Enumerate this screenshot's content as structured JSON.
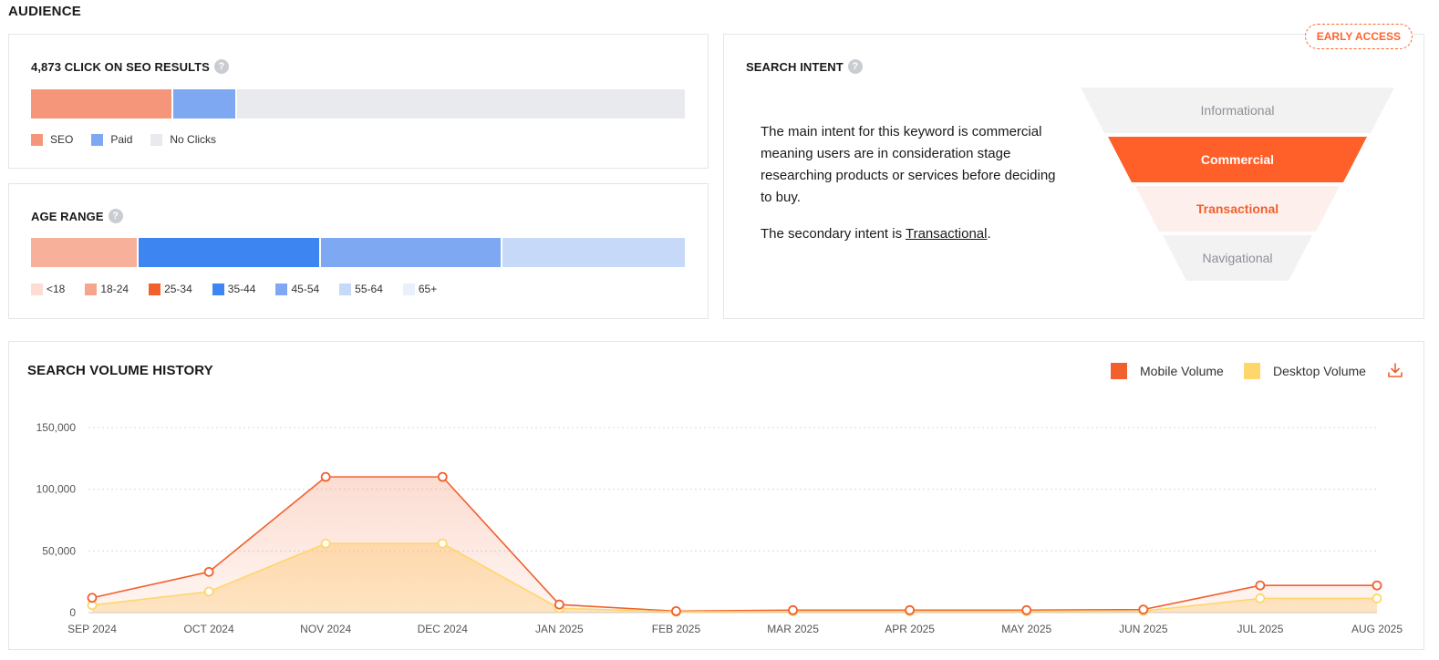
{
  "section_title": "AUDIENCE",
  "clicks": {
    "title": "4,873 CLICK ON SEO RESULTS",
    "help": "?",
    "segments": [
      {
        "key": "seo",
        "label": "SEO",
        "share": 0.218,
        "color": "#f5967a"
      },
      {
        "key": "paid",
        "label": "Paid",
        "share": 0.097,
        "color": "#7fa8f3"
      },
      {
        "key": "noclicks",
        "label": "No Clicks",
        "share": 0.685,
        "color": "#e8eaed"
      }
    ]
  },
  "age": {
    "title": "AGE RANGE",
    "help": "?",
    "bar": [
      {
        "range": "18-24",
        "share": 0.165,
        "color": "#f7b19b"
      },
      {
        "range": "35-44",
        "share": 0.278,
        "color": "#3d86f2"
      },
      {
        "range": "45-54",
        "share": 0.278,
        "color": "#7fa8f3"
      },
      {
        "range": "55-64",
        "share": 0.279,
        "color": "#c6d9f9"
      }
    ],
    "legend": [
      {
        "label": "<18",
        "color": "#fcdcd3"
      },
      {
        "label": "18-24",
        "color": "#f5a58c"
      },
      {
        "label": "25-34",
        "color": "#f1602d"
      },
      {
        "label": "35-44",
        "color": "#3d86f2"
      },
      {
        "label": "45-54",
        "color": "#7fa8f3"
      },
      {
        "label": "55-64",
        "color": "#c6d9f9"
      },
      {
        "label": "65+",
        "color": "#e9f0fc"
      }
    ]
  },
  "intent": {
    "title": "SEARCH INTENT",
    "help": "?",
    "badge": "EARLY ACCESS",
    "text_main": "The main intent for this keyword is commercial meaning users are in consideration stage researching products or services before deciding to buy.",
    "text_secondary_prefix": "The secondary intent is ",
    "text_secondary_link": "Transactional",
    "text_secondary_suffix": ".",
    "funnel": [
      {
        "label": "Informational",
        "bg": "#f2f2f3",
        "color": "#8d9096",
        "bold": false
      },
      {
        "label": "Commercial",
        "bg": "#ff5f29",
        "color": "#ffffff",
        "bold": true
      },
      {
        "label": "Transactional",
        "bg": "#fdf0ec",
        "color": "#f1602d",
        "bold": true
      },
      {
        "label": "Navigational",
        "bg": "#f2f2f3",
        "color": "#8d9096",
        "bold": false
      }
    ]
  },
  "history": {
    "title": "SEARCH VOLUME HISTORY",
    "legend": [
      {
        "label": "Mobile Volume",
        "color": "#f1602d"
      },
      {
        "label": "Desktop Volume",
        "color": "#ffd66b"
      }
    ],
    "icons": {
      "download": "download-icon"
    }
  },
  "chart_data": {
    "type": "area",
    "categories": [
      "SEP 2024",
      "OCT 2024",
      "NOV 2024",
      "DEC 2024",
      "JAN 2025",
      "FEB 2025",
      "MAR 2025",
      "APR 2025",
      "MAY 2025",
      "JUN 2025",
      "JUL 2025",
      "AUG 2025"
    ],
    "series": [
      {
        "name": "Mobile Volume",
        "color": "#f1602d",
        "values": [
          12000,
          33000,
          110000,
          110000,
          6500,
          1200,
          2000,
          2000,
          2000,
          2500,
          22000,
          22000
        ]
      },
      {
        "name": "Desktop Volume",
        "color": "#ffd66b",
        "values": [
          6000,
          17000,
          56000,
          56000,
          3500,
          600,
          1000,
          1000,
          1000,
          1300,
          11500,
          11500
        ]
      }
    ],
    "yticks": [
      "150,000",
      "100,000",
      "50,000",
      "0"
    ],
    "ylim": [
      0,
      150000
    ],
    "grid": true
  }
}
